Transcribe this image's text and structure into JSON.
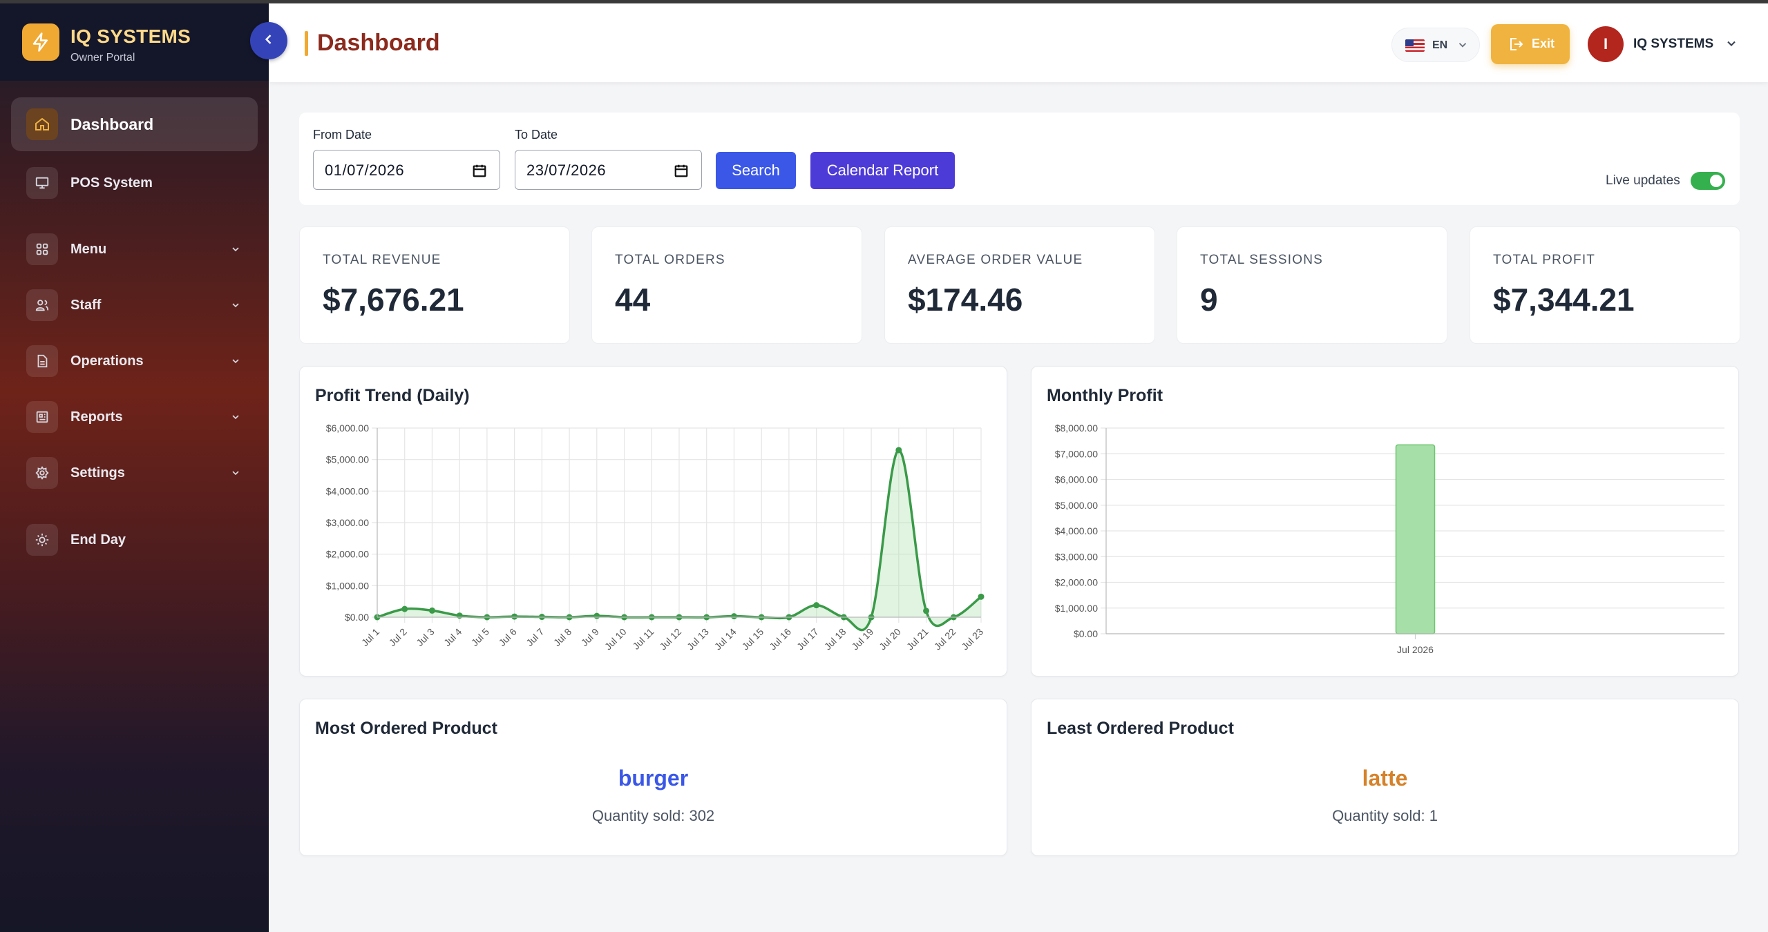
{
  "brand": {
    "title": "IQ SYSTEMS",
    "subtitle": "Owner Portal"
  },
  "sidebar": {
    "items": [
      {
        "label": "Dashboard",
        "icon": "home-icon",
        "active": true
      },
      {
        "label": "POS System",
        "icon": "monitor-icon"
      },
      {
        "label": "Menu",
        "icon": "grid-icon",
        "expandable": true
      },
      {
        "label": "Staff",
        "icon": "users-icon",
        "expandable": true
      },
      {
        "label": "Operations",
        "icon": "document-icon",
        "expandable": true
      },
      {
        "label": "Reports",
        "icon": "report-icon",
        "expandable": true
      },
      {
        "label": "Settings",
        "icon": "settings-icon",
        "expandable": true
      },
      {
        "label": "End Day",
        "icon": "sun-icon"
      }
    ]
  },
  "header": {
    "title": "Dashboard",
    "language": "EN",
    "exit_label": "Exit",
    "avatar_initial": "I",
    "user_name": "IQ SYSTEMS"
  },
  "filters": {
    "from_label": "From Date",
    "from_value": "01/07/2026",
    "to_label": "To Date",
    "to_value": "23/07/2026",
    "search_label": "Search",
    "calendar_label": "Calendar Report",
    "live_label": "Live updates",
    "live_on": true
  },
  "stats": [
    {
      "label": "TOTAL REVENUE",
      "value": "$7,676.21"
    },
    {
      "label": "TOTAL ORDERS",
      "value": "44"
    },
    {
      "label": "AVERAGE ORDER VALUE",
      "value": "$174.46"
    },
    {
      "label": "TOTAL SESSIONS",
      "value": "9"
    },
    {
      "label": "TOTAL PROFIT",
      "value": "$7,344.21"
    }
  ],
  "colors": {
    "accent": "#f0a932",
    "primary": "#3a57e8",
    "chart_line": "#3a9a48",
    "chart_fill": "#a6dfa8",
    "most_product": "#3a57e8",
    "least_product": "#d6822a"
  },
  "chart_data": [
    {
      "type": "line",
      "title": "Profit Trend (Daily)",
      "categories": [
        "Jul 1",
        "Jul 2",
        "Jul 3",
        "Jul 4",
        "Jul 5",
        "Jul 6",
        "Jul 7",
        "Jul 8",
        "Jul 9",
        "Jul 10",
        "Jul 11",
        "Jul 12",
        "Jul 13",
        "Jul 14",
        "Jul 15",
        "Jul 16",
        "Jul 17",
        "Jul 18",
        "Jul 19",
        "Jul 20",
        "Jul 21",
        "Jul 22",
        "Jul 23"
      ],
      "values": [
        0,
        260,
        210,
        50,
        0,
        20,
        10,
        0,
        40,
        0,
        0,
        0,
        0,
        30,
        0,
        0,
        380,
        0,
        0,
        5300,
        200,
        0,
        650
      ],
      "y_ticks": [
        "$0.00",
        "$1,000.00",
        "$2,000.00",
        "$3,000.00",
        "$4,000.00",
        "$5,000.00",
        "$6,000.00"
      ],
      "ylim": [
        0,
        6000
      ],
      "grid": true
    },
    {
      "type": "bar",
      "title": "Monthly Profit",
      "categories": [
        "Jul 2026"
      ],
      "values": [
        7344.21
      ],
      "y_ticks": [
        "$0.00",
        "$1,000.00",
        "$2,000.00",
        "$3,000.00",
        "$4,000.00",
        "$5,000.00",
        "$6,000.00",
        "$7,000.00",
        "$8,000.00"
      ],
      "ylim": [
        0,
        8000
      ],
      "grid": true
    }
  ],
  "products": {
    "most": {
      "title": "Most Ordered Product",
      "name": "burger",
      "qty_text": "Quantity sold: 302"
    },
    "least": {
      "title": "Least Ordered Product",
      "name": "latte",
      "qty_text": "Quantity sold: 1"
    }
  }
}
